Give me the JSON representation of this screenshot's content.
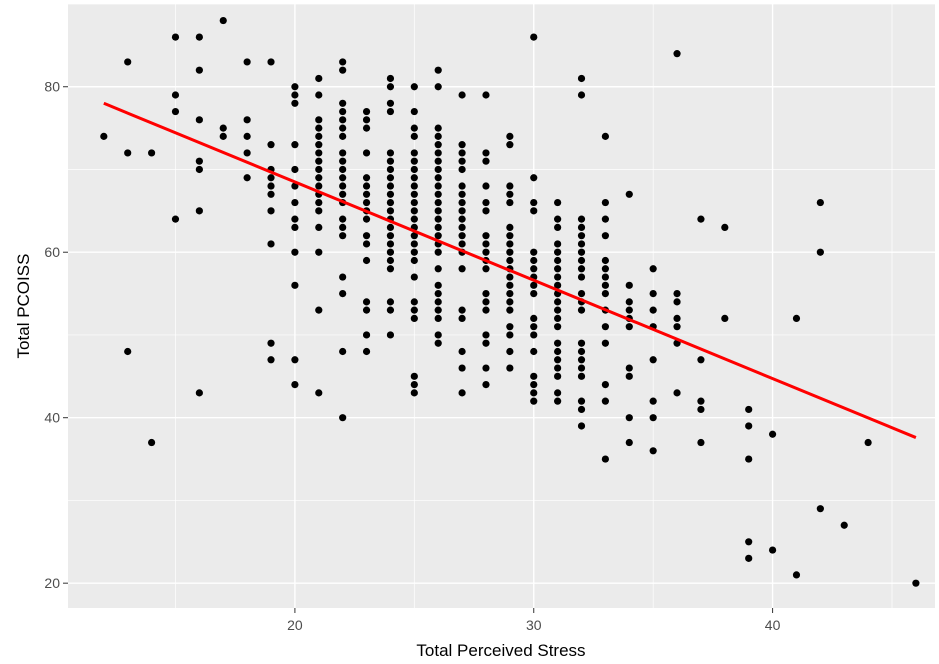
{
  "chart_data": {
    "type": "scatter",
    "title": "",
    "xlabel": "Total Perceived Stress",
    "ylabel": "Total PCOISS",
    "xlim": [
      10.5,
      46.8
    ],
    "ylim": [
      17,
      90
    ],
    "x_ticks": [
      20,
      30,
      40
    ],
    "y_ticks": [
      20,
      40,
      60,
      80
    ],
    "grid": true,
    "legend": "none",
    "colors": {
      "panel": "#ebebeb",
      "grid": "#ffffff",
      "points": "#000000",
      "fit_line": "#ff0000"
    },
    "fit_line": {
      "x": [
        12,
        46
      ],
      "y": [
        78,
        37.6
      ]
    },
    "points": [
      [
        12,
        74
      ],
      [
        13,
        83
      ],
      [
        13,
        72
      ],
      [
        13,
        48
      ],
      [
        14,
        72
      ],
      [
        14,
        37
      ],
      [
        15,
        86
      ],
      [
        15,
        79
      ],
      [
        15,
        77
      ],
      [
        15,
        64
      ],
      [
        16,
        86
      ],
      [
        16,
        82
      ],
      [
        16,
        76
      ],
      [
        16,
        71
      ],
      [
        16,
        70
      ],
      [
        16,
        65
      ],
      [
        16,
        43
      ],
      [
        17,
        88
      ],
      [
        17,
        75
      ],
      [
        17,
        74
      ],
      [
        18,
        83
      ],
      [
        18,
        76
      ],
      [
        18,
        74
      ],
      [
        18,
        72
      ],
      [
        18,
        69
      ],
      [
        19,
        83
      ],
      [
        19,
        73
      ],
      [
        19,
        70
      ],
      [
        19,
        69
      ],
      [
        19,
        68
      ],
      [
        19,
        67
      ],
      [
        19,
        65
      ],
      [
        19,
        61
      ],
      [
        19,
        49
      ],
      [
        19,
        47
      ],
      [
        20,
        80
      ],
      [
        20,
        79
      ],
      [
        20,
        78
      ],
      [
        20,
        73
      ],
      [
        20,
        70
      ],
      [
        20,
        68
      ],
      [
        20,
        66
      ],
      [
        20,
        64
      ],
      [
        20,
        63
      ],
      [
        20,
        60
      ],
      [
        20,
        56
      ],
      [
        20,
        47
      ],
      [
        20,
        44
      ],
      [
        21,
        81
      ],
      [
        21,
        79
      ],
      [
        21,
        76
      ],
      [
        21,
        75
      ],
      [
        21,
        74
      ],
      [
        21,
        73
      ],
      [
        21,
        72
      ],
      [
        21,
        71
      ],
      [
        21,
        70
      ],
      [
        21,
        69
      ],
      [
        21,
        68
      ],
      [
        21,
        67
      ],
      [
        21,
        66
      ],
      [
        21,
        65
      ],
      [
        21,
        63
      ],
      [
        21,
        60
      ],
      [
        21,
        53
      ],
      [
        21,
        43
      ],
      [
        22,
        83
      ],
      [
        22,
        82
      ],
      [
        22,
        78
      ],
      [
        22,
        77
      ],
      [
        22,
        76
      ],
      [
        22,
        75
      ],
      [
        22,
        74
      ],
      [
        22,
        72
      ],
      [
        22,
        71
      ],
      [
        22,
        70
      ],
      [
        22,
        69
      ],
      [
        22,
        68
      ],
      [
        22,
        67
      ],
      [
        22,
        66
      ],
      [
        22,
        64
      ],
      [
        22,
        63
      ],
      [
        22,
        62
      ],
      [
        22,
        57
      ],
      [
        22,
        55
      ],
      [
        22,
        48
      ],
      [
        22,
        40
      ],
      [
        23,
        77
      ],
      [
        23,
        76
      ],
      [
        23,
        75
      ],
      [
        23,
        72
      ],
      [
        23,
        69
      ],
      [
        23,
        68
      ],
      [
        23,
        67
      ],
      [
        23,
        66
      ],
      [
        23,
        65
      ],
      [
        23,
        64
      ],
      [
        23,
        62
      ],
      [
        23,
        61
      ],
      [
        23,
        59
      ],
      [
        23,
        54
      ],
      [
        23,
        53
      ],
      [
        23,
        50
      ],
      [
        23,
        48
      ],
      [
        24,
        81
      ],
      [
        24,
        80
      ],
      [
        24,
        78
      ],
      [
        24,
        77
      ],
      [
        24,
        72
      ],
      [
        24,
        71
      ],
      [
        24,
        70
      ],
      [
        24,
        69
      ],
      [
        24,
        68
      ],
      [
        24,
        67
      ],
      [
        24,
        66
      ],
      [
        24,
        65
      ],
      [
        24,
        64
      ],
      [
        24,
        63
      ],
      [
        24,
        62
      ],
      [
        24,
        61
      ],
      [
        24,
        60
      ],
      [
        24,
        59
      ],
      [
        24,
        58
      ],
      [
        24,
        54
      ],
      [
        24,
        53
      ],
      [
        24,
        50
      ],
      [
        25,
        80
      ],
      [
        25,
        77
      ],
      [
        25,
        75
      ],
      [
        25,
        74
      ],
      [
        25,
        72
      ],
      [
        25,
        71
      ],
      [
        25,
        70
      ],
      [
        25,
        69
      ],
      [
        25,
        68
      ],
      [
        25,
        67
      ],
      [
        25,
        66
      ],
      [
        25,
        65
      ],
      [
        25,
        64
      ],
      [
        25,
        63
      ],
      [
        25,
        62
      ],
      [
        25,
        61
      ],
      [
        25,
        60
      ],
      [
        25,
        59
      ],
      [
        25,
        57
      ],
      [
        25,
        54
      ],
      [
        25,
        53
      ],
      [
        25,
        52
      ],
      [
        25,
        45
      ],
      [
        25,
        44
      ],
      [
        25,
        43
      ],
      [
        26,
        82
      ],
      [
        26,
        80
      ],
      [
        26,
        75
      ],
      [
        26,
        74
      ],
      [
        26,
        73
      ],
      [
        26,
        72
      ],
      [
        26,
        71
      ],
      [
        26,
        70
      ],
      [
        26,
        69
      ],
      [
        26,
        68
      ],
      [
        26,
        67
      ],
      [
        26,
        66
      ],
      [
        26,
        65
      ],
      [
        26,
        64
      ],
      [
        26,
        63
      ],
      [
        26,
        62
      ],
      [
        26,
        61
      ],
      [
        26,
        60
      ],
      [
        26,
        58
      ],
      [
        26,
        56
      ],
      [
        26,
        55
      ],
      [
        26,
        54
      ],
      [
        26,
        53
      ],
      [
        26,
        52
      ],
      [
        26,
        50
      ],
      [
        26,
        49
      ],
      [
        27,
        79
      ],
      [
        27,
        73
      ],
      [
        27,
        72
      ],
      [
        27,
        71
      ],
      [
        27,
        70
      ],
      [
        27,
        68
      ],
      [
        27,
        67
      ],
      [
        27,
        66
      ],
      [
        27,
        65
      ],
      [
        27,
        64
      ],
      [
        27,
        63
      ],
      [
        27,
        62
      ],
      [
        27,
        61
      ],
      [
        27,
        60
      ],
      [
        27,
        58
      ],
      [
        27,
        53
      ],
      [
        27,
        52
      ],
      [
        27,
        48
      ],
      [
        27,
        46
      ],
      [
        27,
        43
      ],
      [
        28,
        79
      ],
      [
        28,
        72
      ],
      [
        28,
        71
      ],
      [
        28,
        68
      ],
      [
        28,
        66
      ],
      [
        28,
        65
      ],
      [
        28,
        62
      ],
      [
        28,
        61
      ],
      [
        28,
        60
      ],
      [
        28,
        59
      ],
      [
        28,
        58
      ],
      [
        28,
        55
      ],
      [
        28,
        54
      ],
      [
        28,
        53
      ],
      [
        28,
        50
      ],
      [
        28,
        49
      ],
      [
        28,
        46
      ],
      [
        28,
        44
      ],
      [
        29,
        74
      ],
      [
        29,
        73
      ],
      [
        29,
        68
      ],
      [
        29,
        67
      ],
      [
        29,
        66
      ],
      [
        29,
        63
      ],
      [
        29,
        62
      ],
      [
        29,
        61
      ],
      [
        29,
        60
      ],
      [
        29,
        59
      ],
      [
        29,
        58
      ],
      [
        29,
        57
      ],
      [
        29,
        56
      ],
      [
        29,
        55
      ],
      [
        29,
        54
      ],
      [
        29,
        53
      ],
      [
        29,
        51
      ],
      [
        29,
        50
      ],
      [
        29,
        48
      ],
      [
        29,
        46
      ],
      [
        30,
        86
      ],
      [
        30,
        69
      ],
      [
        30,
        66
      ],
      [
        30,
        65
      ],
      [
        30,
        60
      ],
      [
        30,
        59
      ],
      [
        30,
        58
      ],
      [
        30,
        57
      ],
      [
        30,
        56
      ],
      [
        30,
        55
      ],
      [
        30,
        52
      ],
      [
        30,
        51
      ],
      [
        30,
        50
      ],
      [
        30,
        48
      ],
      [
        30,
        45
      ],
      [
        30,
        44
      ],
      [
        30,
        43
      ],
      [
        30,
        42
      ],
      [
        31,
        66
      ],
      [
        31,
        64
      ],
      [
        31,
        63
      ],
      [
        31,
        61
      ],
      [
        31,
        60
      ],
      [
        31,
        59
      ],
      [
        31,
        58
      ],
      [
        31,
        57
      ],
      [
        31,
        56
      ],
      [
        31,
        55
      ],
      [
        31,
        54
      ],
      [
        31,
        53
      ],
      [
        31,
        52
      ],
      [
        31,
        51
      ],
      [
        31,
        49
      ],
      [
        31,
        48
      ],
      [
        31,
        47
      ],
      [
        31,
        46
      ],
      [
        31,
        45
      ],
      [
        31,
        43
      ],
      [
        31,
        42
      ],
      [
        32,
        81
      ],
      [
        32,
        79
      ],
      [
        32,
        64
      ],
      [
        32,
        63
      ],
      [
        32,
        62
      ],
      [
        32,
        61
      ],
      [
        32,
        60
      ],
      [
        32,
        59
      ],
      [
        32,
        58
      ],
      [
        32,
        57
      ],
      [
        32,
        55
      ],
      [
        32,
        54
      ],
      [
        32,
        53
      ],
      [
        32,
        49
      ],
      [
        32,
        48
      ],
      [
        32,
        47
      ],
      [
        32,
        46
      ],
      [
        32,
        45
      ],
      [
        32,
        42
      ],
      [
        32,
        41
      ],
      [
        32,
        39
      ],
      [
        33,
        74
      ],
      [
        33,
        66
      ],
      [
        33,
        64
      ],
      [
        33,
        62
      ],
      [
        33,
        59
      ],
      [
        33,
        58
      ],
      [
        33,
        57
      ],
      [
        33,
        56
      ],
      [
        33,
        55
      ],
      [
        33,
        53
      ],
      [
        33,
        51
      ],
      [
        33,
        49
      ],
      [
        33,
        44
      ],
      [
        33,
        42
      ],
      [
        33,
        35
      ],
      [
        34,
        67
      ],
      [
        34,
        56
      ],
      [
        34,
        54
      ],
      [
        34,
        53
      ],
      [
        34,
        52
      ],
      [
        34,
        51
      ],
      [
        34,
        46
      ],
      [
        34,
        45
      ],
      [
        34,
        40
      ],
      [
        34,
        37
      ],
      [
        35,
        58
      ],
      [
        35,
        55
      ],
      [
        35,
        53
      ],
      [
        35,
        51
      ],
      [
        35,
        47
      ],
      [
        35,
        42
      ],
      [
        35,
        40
      ],
      [
        35,
        36
      ],
      [
        36,
        84
      ],
      [
        36,
        55
      ],
      [
        36,
        54
      ],
      [
        36,
        52
      ],
      [
        36,
        51
      ],
      [
        36,
        49
      ],
      [
        36,
        43
      ],
      [
        37,
        64
      ],
      [
        37,
        47
      ],
      [
        37,
        42
      ],
      [
        37,
        41
      ],
      [
        37,
        37
      ],
      [
        38,
        63
      ],
      [
        38,
        52
      ],
      [
        39,
        41
      ],
      [
        39,
        39
      ],
      [
        39,
        35
      ],
      [
        39,
        25
      ],
      [
        39,
        23
      ],
      [
        40,
        38
      ],
      [
        40,
        24
      ],
      [
        41,
        52
      ],
      [
        41,
        21
      ],
      [
        42,
        66
      ],
      [
        42,
        60
      ],
      [
        42,
        29
      ],
      [
        43,
        27
      ],
      [
        44,
        37
      ],
      [
        46,
        20
      ]
    ]
  }
}
